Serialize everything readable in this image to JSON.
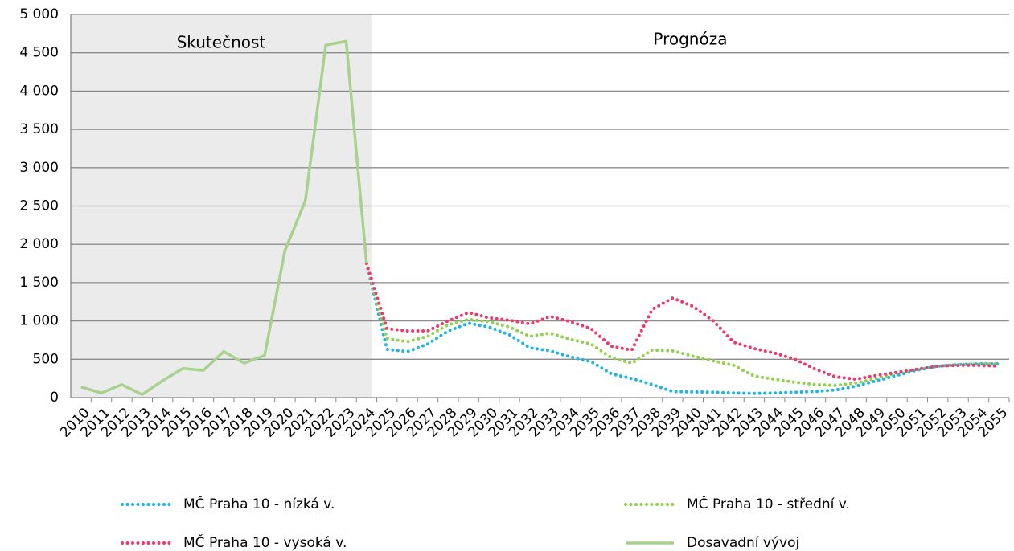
{
  "chart_data": {
    "type": "line",
    "categories": [
      "2010",
      "2011",
      "2012",
      "2013",
      "2014",
      "2015",
      "2016",
      "2017",
      "2018",
      "2019",
      "2020",
      "2021",
      "2022",
      "2023",
      "2024",
      "2025",
      "2026",
      "2027",
      "2028",
      "2029",
      "2030",
      "2031",
      "2032",
      "2033",
      "2034",
      "2035",
      "2036",
      "2037",
      "2038",
      "2039",
      "2040",
      "2041",
      "2042",
      "2043",
      "2044",
      "2045",
      "2046",
      "2047",
      "2048",
      "2049",
      "2050",
      "2051",
      "2052",
      "2053",
      "2054",
      "2055"
    ],
    "annotations": [
      "Skutečnost",
      "Prognóza"
    ],
    "series": [
      {
        "name": "MČ Praha 10 - nízká v.",
        "color": "#1fb3e8",
        "style": "dotted",
        "values": [
          null,
          null,
          null,
          null,
          null,
          null,
          null,
          null,
          null,
          null,
          null,
          null,
          null,
          null,
          1750,
          630,
          600,
          700,
          870,
          970,
          920,
          820,
          650,
          610,
          530,
          470,
          310,
          250,
          170,
          80,
          75,
          70,
          60,
          55,
          60,
          70,
          80,
          100,
          150,
          220,
          290,
          360,
          410,
          430,
          440,
          440
        ]
      },
      {
        "name": "MČ Praha 10 - střední v.",
        "color": "#92d050",
        "style": "dotted",
        "values": [
          null,
          null,
          null,
          null,
          null,
          null,
          null,
          null,
          null,
          null,
          null,
          null,
          null,
          null,
          1750,
          770,
          730,
          800,
          950,
          1020,
          990,
          920,
          800,
          840,
          760,
          700,
          520,
          450,
          620,
          610,
          540,
          480,
          420,
          280,
          240,
          200,
          170,
          160,
          190,
          250,
          320,
          370,
          410,
          430,
          440,
          440
        ]
      },
      {
        "name": "MČ Praha 10 - vysoká v.",
        "color": "#f0386b",
        "style": "dotted",
        "values": [
          null,
          null,
          null,
          null,
          null,
          null,
          null,
          null,
          null,
          null,
          null,
          null,
          null,
          null,
          1750,
          900,
          870,
          870,
          1000,
          1110,
          1040,
          1010,
          960,
          1060,
          990,
          900,
          670,
          620,
          1150,
          1300,
          1190,
          1000,
          720,
          640,
          580,
          500,
          370,
          270,
          240,
          290,
          330,
          370,
          410,
          420,
          420,
          410
        ]
      },
      {
        "name": "Dosavadní vývoj",
        "color": "#a9d18e",
        "style": "solid",
        "values": [
          140,
          60,
          170,
          40,
          220,
          380,
          355,
          600,
          450,
          550,
          1920,
          2570,
          4600,
          4650,
          1750,
          null,
          null,
          null,
          null,
          null,
          null,
          null,
          null,
          null,
          null,
          null,
          null,
          null,
          null,
          null,
          null,
          null,
          null,
          null,
          null,
          null,
          null,
          null,
          null,
          null,
          null,
          null,
          null,
          null,
          null,
          null
        ]
      }
    ],
    "ylim": [
      0,
      5000
    ],
    "yticks": [
      0,
      500,
      {
        "value": 1000,
        "label": "1 000"
      },
      {
        "value": 1500,
        "label": "1 500"
      },
      {
        "value": 2000,
        "label": "2 000"
      },
      {
        "value": 2500,
        "label": "2 500"
      },
      {
        "value": 3000,
        "label": "3 000"
      },
      {
        "value": 3500,
        "label": "3 500"
      },
      {
        "value": 4000,
        "label": "4 000"
      },
      {
        "value": 4500,
        "label": "4 500"
      },
      {
        "value": 5000,
        "label": "5 000"
      }
    ],
    "grid": true
  }
}
